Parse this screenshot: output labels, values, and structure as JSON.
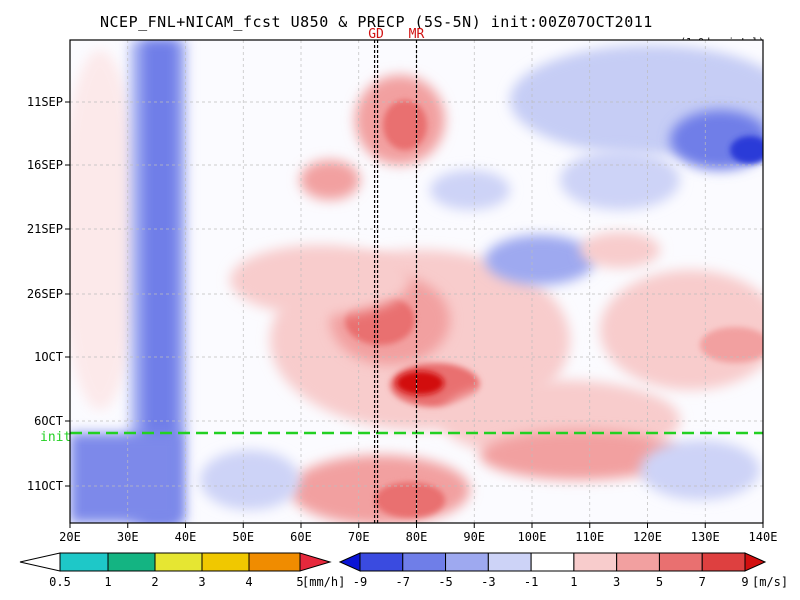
{
  "header": {
    "title": "NCEP_FNL+NICAM_fcst U850 & PRECP (5S-5N) init:00Z07OCT2011",
    "note": "(1.0deg intpl)"
  },
  "chart_data": {
    "type": "heatmap",
    "title": "NCEP_FNL+NICAM_fcst U850 & PRECP (5S-5N) init:00Z07OCT2011",
    "x_ticks": [
      "20E",
      "30E",
      "40E",
      "50E",
      "60E",
      "70E",
      "80E",
      "90E",
      "100E",
      "110E",
      "120E",
      "130E",
      "140E"
    ],
    "x_range": [
      20,
      140
    ],
    "y_ticks": [
      "11SEP",
      "16SEP",
      "21SEP",
      "26SEP",
      "1OCT",
      "6OCT",
      "11OCT"
    ],
    "init_label": "init",
    "markers": [
      {
        "label": "GD",
        "lon": 73
      },
      {
        "label": "MR",
        "lon": 80
      }
    ],
    "u850_colorbar": {
      "labels": [
        "-9",
        "-7",
        "-5",
        "-3",
        "-1",
        "1",
        "3",
        "5",
        "7",
        "9"
      ],
      "unit": "[m/s]",
      "colors": [
        "#0a14d6",
        "#3a4be0",
        "#6f7ee8",
        "#9ea9f0",
        "#cdd3f7",
        "#ffffff",
        "#f8cccc",
        "#f2a0a0",
        "#e97070",
        "#de4040",
        "#d20f0f"
      ]
    },
    "precip_colorbar": {
      "labels": [
        "0.5",
        "1",
        "2",
        "3",
        "4",
        "5"
      ],
      "unit": "[mm/h]",
      "colors": [
        "#ffffff",
        "#1ec8c8",
        "#14b482",
        "#e6e632",
        "#f0c800",
        "#f08c00",
        "#e6283c"
      ]
    },
    "u850_regions": [
      {
        "lon": [
          28,
          38
        ],
        "date": [
          "11SEP",
          "11OCT"
        ],
        "u850": -6
      },
      {
        "lon": [
          70,
          82
        ],
        "date": [
          "26SEP",
          "3OCT"
        ],
        "u850": 7
      },
      {
        "lon": [
          72,
          82
        ],
        "date": [
          "9SEP",
          "14SEP"
        ],
        "u850": 5
      },
      {
        "lon": [
          76,
          90
        ],
        "date": [
          "3OCT",
          "6OCT"
        ],
        "u850": 9
      },
      {
        "lon": [
          62,
          112
        ],
        "date": [
          "21SEP",
          "6OCT"
        ],
        "u850": 3
      },
      {
        "lon": [
          96,
          140
        ],
        "date": [
          "9SEP",
          "21SEP"
        ],
        "u850": -4
      },
      {
        "lon": [
          132,
          140
        ],
        "date": [
          "13SEP",
          "18SEP"
        ],
        "u850": -8
      },
      {
        "lon": [
          20,
          40
        ],
        "date": [
          "7OCT",
          "11OCT"
        ],
        "u850": -6
      }
    ]
  },
  "colorbars": {
    "precip": {
      "labels": [
        "0.5",
        "1",
        "2",
        "3",
        "4",
        "5"
      ],
      "unit": "[mm/h]"
    },
    "u850": {
      "labels": [
        "-9",
        "-7",
        "-5",
        "-3",
        "-1",
        "1",
        "3",
        "5",
        "7",
        "9"
      ],
      "unit": "[m/s]"
    }
  }
}
